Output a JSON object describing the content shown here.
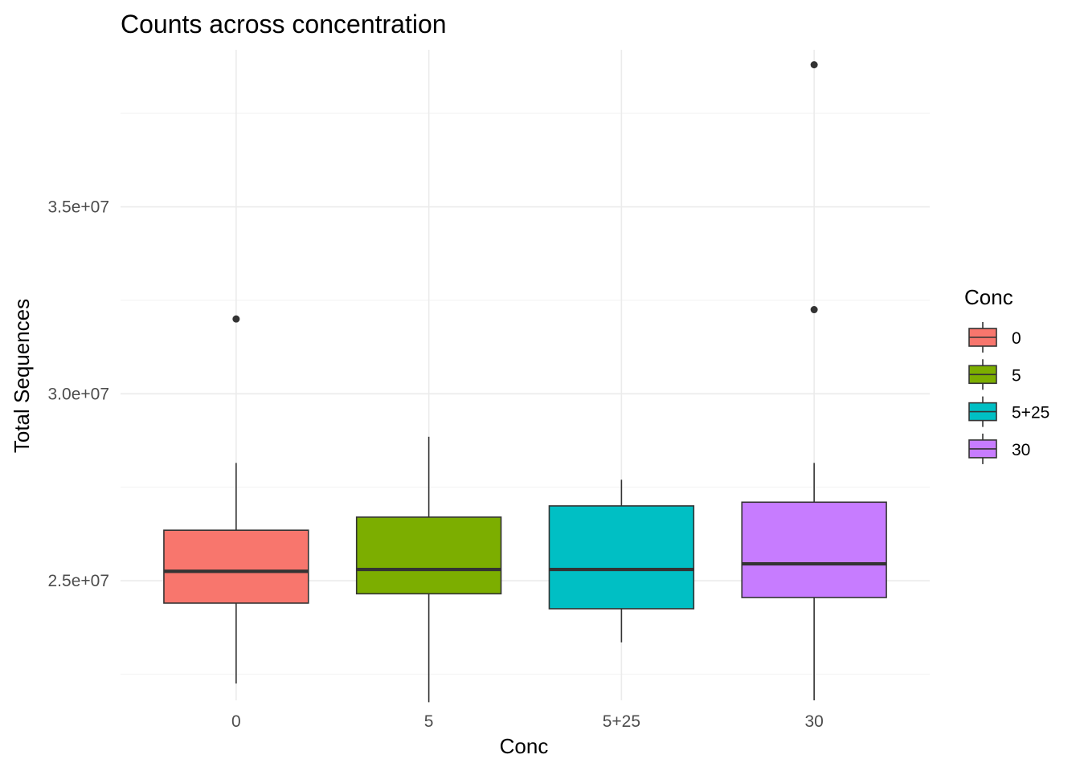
{
  "chart_data": {
    "type": "boxplot",
    "title": "Counts across concentration",
    "xlabel": "Conc",
    "ylabel": "Total Sequences",
    "categories": [
      "0",
      "5",
      "5+25",
      "30"
    ],
    "ylim": [
      21800000,
      39200000
    ],
    "yticks": [
      25000000,
      30000000,
      35000000
    ],
    "ytick_labels": [
      "2.5e+07",
      "3.0e+07",
      "3.5e+07"
    ],
    "grid": true,
    "legend": {
      "title": "Conc",
      "position": "right",
      "entries": [
        "0",
        "5",
        "5+25",
        "30"
      ]
    },
    "colors": [
      "#F8766D",
      "#7CAE00",
      "#00BFC4",
      "#C77CFF"
    ],
    "boxes": [
      {
        "category": "0",
        "whisker_low": 22250000,
        "q1": 24400000,
        "median": 25250000,
        "q3": 26350000,
        "whisker_high": 28150000,
        "outliers": [
          32000000
        ]
      },
      {
        "category": "5",
        "whisker_low": 21750000,
        "q1": 24650000,
        "median": 25300000,
        "q3": 26700000,
        "whisker_high": 28850000,
        "outliers": []
      },
      {
        "category": "5+25",
        "whisker_low": 23350000,
        "q1": 24250000,
        "median": 25300000,
        "q3": 27000000,
        "whisker_high": 27700000,
        "outliers": []
      },
      {
        "category": "30",
        "whisker_low": 21800000,
        "q1": 24550000,
        "median": 25450000,
        "q3": 27100000,
        "whisker_high": 28150000,
        "outliers": [
          32250000,
          38800000
        ]
      }
    ]
  }
}
